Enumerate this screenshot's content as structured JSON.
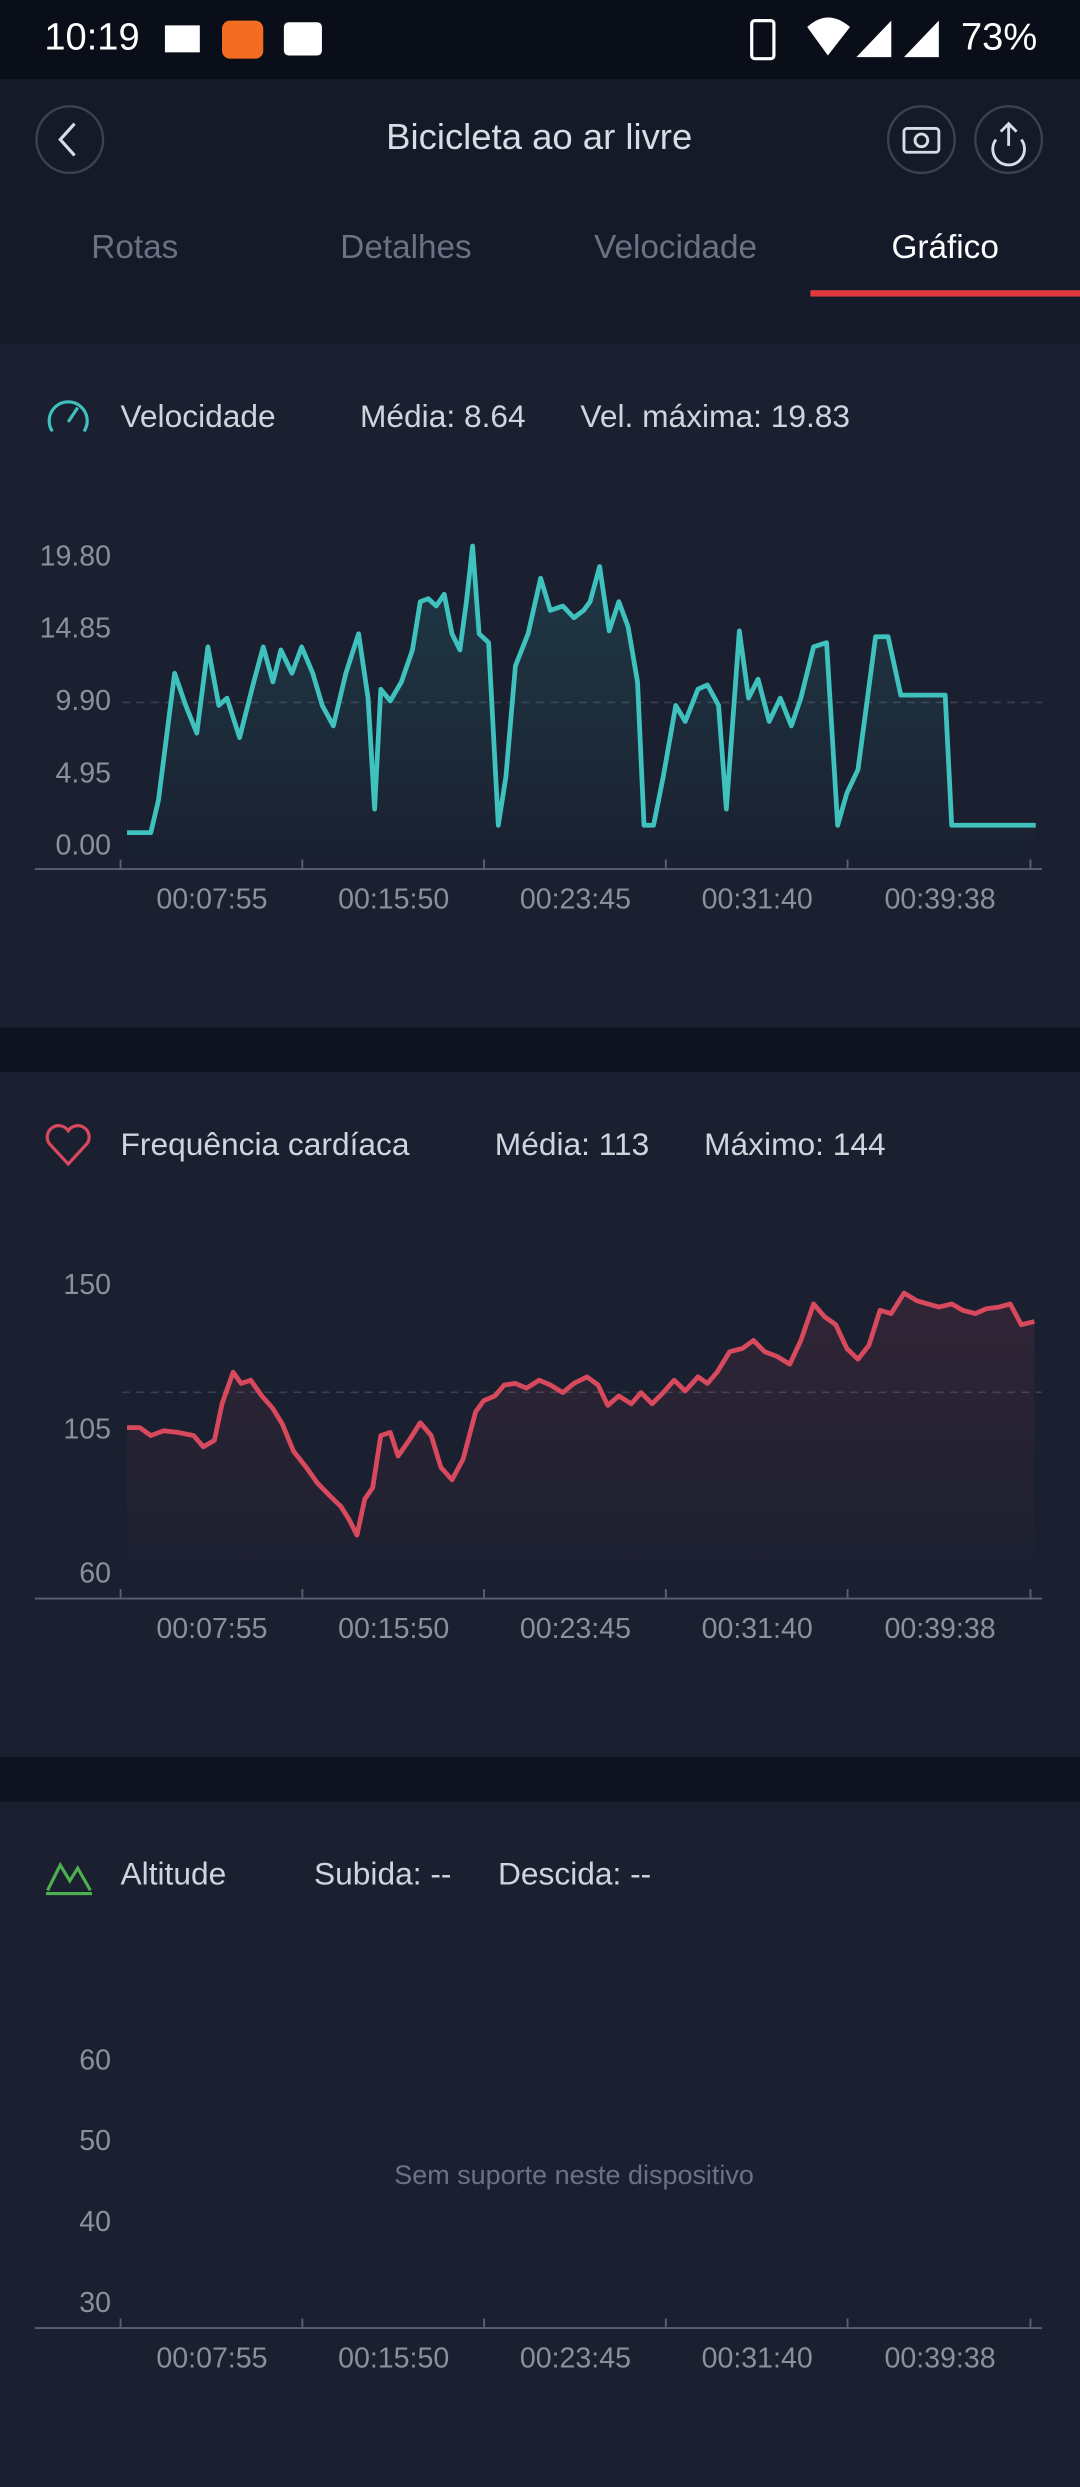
{
  "status_bar": {
    "time": "10:19",
    "battery": "73%"
  },
  "header": {
    "title": "Bicicleta ao ar livre"
  },
  "tabs": [
    "Rotas",
    "Detalhes",
    "Velocidade",
    "Gráfico"
  ],
  "chart_data": [
    {
      "type": "line",
      "title": "Velocidade",
      "stats": [
        "Média: 8.64",
        "Vel. máxima: 19.83"
      ],
      "color": "#3fc1bd",
      "reference_line": 9.9,
      "xlim": [
        -224,
        2408
      ],
      "ylim": [
        -1.5,
        24
      ],
      "xticks": [
        {
          "value": 475,
          "label": "00:07:55"
        },
        {
          "value": 950,
          "label": "00:15:50"
        },
        {
          "value": 1425,
          "label": "00:23:45"
        },
        {
          "value": 1900,
          "label": "00:31:40"
        },
        {
          "value": 2378,
          "label": "00:39:38"
        }
      ],
      "yticks": [
        {
          "value": 0,
          "label": "0.00"
        },
        4.95,
        {
          "value": 9.9,
          "label": "9.90"
        },
        14.85,
        {
          "value": 19.8,
          "label": "19.80"
        }
      ],
      "x": [
        17,
        79,
        99,
        141,
        170,
        199,
        228,
        257,
        278,
        311,
        348,
        373,
        398,
        419,
        448,
        473,
        502,
        527,
        556,
        589,
        622,
        647,
        664,
        680,
        705,
        734,
        763,
        783,
        804,
        825,
        846,
        866,
        887,
        904,
        920,
        937,
        962,
        987,
        1007,
        1032,
        1065,
        1098,
        1123,
        1156,
        1185,
        1210,
        1227,
        1252,
        1277,
        1302,
        1326,
        1351,
        1368,
        1393,
        1418,
        1451,
        1476,
        1509,
        1534,
        1563,
        1583,
        1617,
        1641,
        1666,
        1695,
        1724,
        1753,
        1778,
        1811,
        1845,
        1874,
        1898,
        1927,
        1952,
        1973,
        2006,
        2039,
        2155,
        2172,
        2213,
        2296,
        2392
      ],
      "values": [
        1.0,
        1.0,
        3.2,
        11.9,
        9.7,
        7.8,
        13.7,
        9.7,
        10.2,
        7.5,
        11.3,
        13.7,
        11.3,
        13.5,
        11.9,
        13.7,
        11.9,
        9.7,
        8.3,
        11.9,
        14.6,
        10.2,
        2.6,
        10.8,
        10.0,
        11.3,
        13.5,
        16.8,
        17.0,
        16.5,
        17.3,
        14.6,
        13.5,
        16.8,
        20.6,
        14.6,
        14.0,
        1.5,
        4.8,
        12.4,
        14.6,
        18.4,
        16.2,
        16.5,
        15.7,
        16.2,
        16.8,
        19.2,
        14.8,
        16.8,
        15.1,
        11.3,
        1.5,
        1.5,
        4.8,
        9.7,
        8.6,
        10.8,
        11.1,
        9.7,
        2.6,
        14.8,
        10.2,
        11.5,
        8.6,
        10.2,
        8.3,
        10.2,
        13.7,
        14.0,
        1.5,
        3.7,
        5.3,
        10.2,
        14.4,
        14.4,
        10.4,
        10.4,
        1.5,
        1.5,
        1.5,
        1.5
      ]
    },
    {
      "type": "line",
      "title": "Frequência cardíaca",
      "stats": [
        "Média: 113",
        "Máximo: 144"
      ],
      "color": "#d9495e",
      "reference_line": 117,
      "xlim": [
        -224,
        2408
      ],
      "ylim": [
        52.6,
        165
      ],
      "xticks": [
        {
          "value": 475,
          "label": "00:07:55"
        },
        {
          "value": 950,
          "label": "00:15:50"
        },
        {
          "value": 1425,
          "label": "00:23:45"
        },
        {
          "value": 1900,
          "label": "00:31:40"
        },
        {
          "value": 2378,
          "label": "00:39:38"
        }
      ],
      "yticks": [
        60,
        105,
        150
      ],
      "x": [
        17,
        50,
        79,
        112,
        149,
        191,
        216,
        245,
        265,
        294,
        315,
        340,
        369,
        398,
        423,
        452,
        485,
        514,
        547,
        576,
        597,
        618,
        638,
        659,
        680,
        705,
        725,
        754,
        783,
        812,
        837,
        866,
        895,
        928,
        949,
        978,
        1003,
        1032,
        1061,
        1094,
        1123,
        1156,
        1185,
        1219,
        1248,
        1273,
        1302,
        1335,
        1360,
        1389,
        1418,
        1447,
        1476,
        1509,
        1534,
        1559,
        1592,
        1625,
        1654,
        1683,
        1716,
        1749,
        1778,
        1811,
        1840,
        1869,
        1898,
        1927,
        1956,
        1985,
        2014,
        2048,
        2081,
        2110,
        2139,
        2172,
        2201,
        2234,
        2263,
        2296,
        2325,
        2354,
        2388
      ],
      "values": [
        106,
        106,
        103.5,
        105,
        104.5,
        103.5,
        100,
        102,
        113.4,
        123.3,
        119.8,
        120.8,
        115.9,
        111.9,
        107,
        98.6,
        93.6,
        88.7,
        84.7,
        81.3,
        77.3,
        72.4,
        83.7,
        87.2,
        103.5,
        104.5,
        97.1,
        102,
        107.5,
        103.5,
        93.6,
        89.7,
        96.1,
        110.9,
        114.4,
        115.9,
        119.3,
        119.8,
        118.3,
        120.8,
        119.3,
        116.9,
        119.8,
        121.8,
        119.3,
        112.9,
        115.9,
        113.4,
        116.9,
        113.4,
        116.9,
        120.8,
        117.4,
        121.8,
        119.8,
        123.3,
        129.7,
        130.7,
        133.2,
        129.7,
        128.2,
        125.8,
        133.2,
        144.6,
        140.6,
        138.1,
        130.7,
        127.3,
        131.7,
        142.6,
        141.6,
        148,
        145.6,
        144.6,
        143.6,
        144.6,
        142.6,
        141.6,
        143.1,
        143.6,
        144.6,
        138.1,
        139.1
      ]
    },
    {
      "type": "line",
      "title": "Altitude",
      "stats": [
        "Subida: --",
        "Descida: --"
      ],
      "color": "#4caf50",
      "message": "Sem suporte neste dispositivo",
      "xlim": [
        -224,
        2408
      ],
      "ylim": [
        27.1,
        70
      ],
      "xticks": [
        {
          "value": 475,
          "label": "00:07:55"
        },
        {
          "value": 950,
          "label": "00:15:50"
        },
        {
          "value": 1425,
          "label": "00:23:45"
        },
        {
          "value": 1900,
          "label": "00:31:40"
        },
        {
          "value": 2378,
          "label": "00:39:38"
        }
      ],
      "yticks": [
        30,
        40,
        50,
        60
      ],
      "x": [],
      "values": []
    }
  ]
}
